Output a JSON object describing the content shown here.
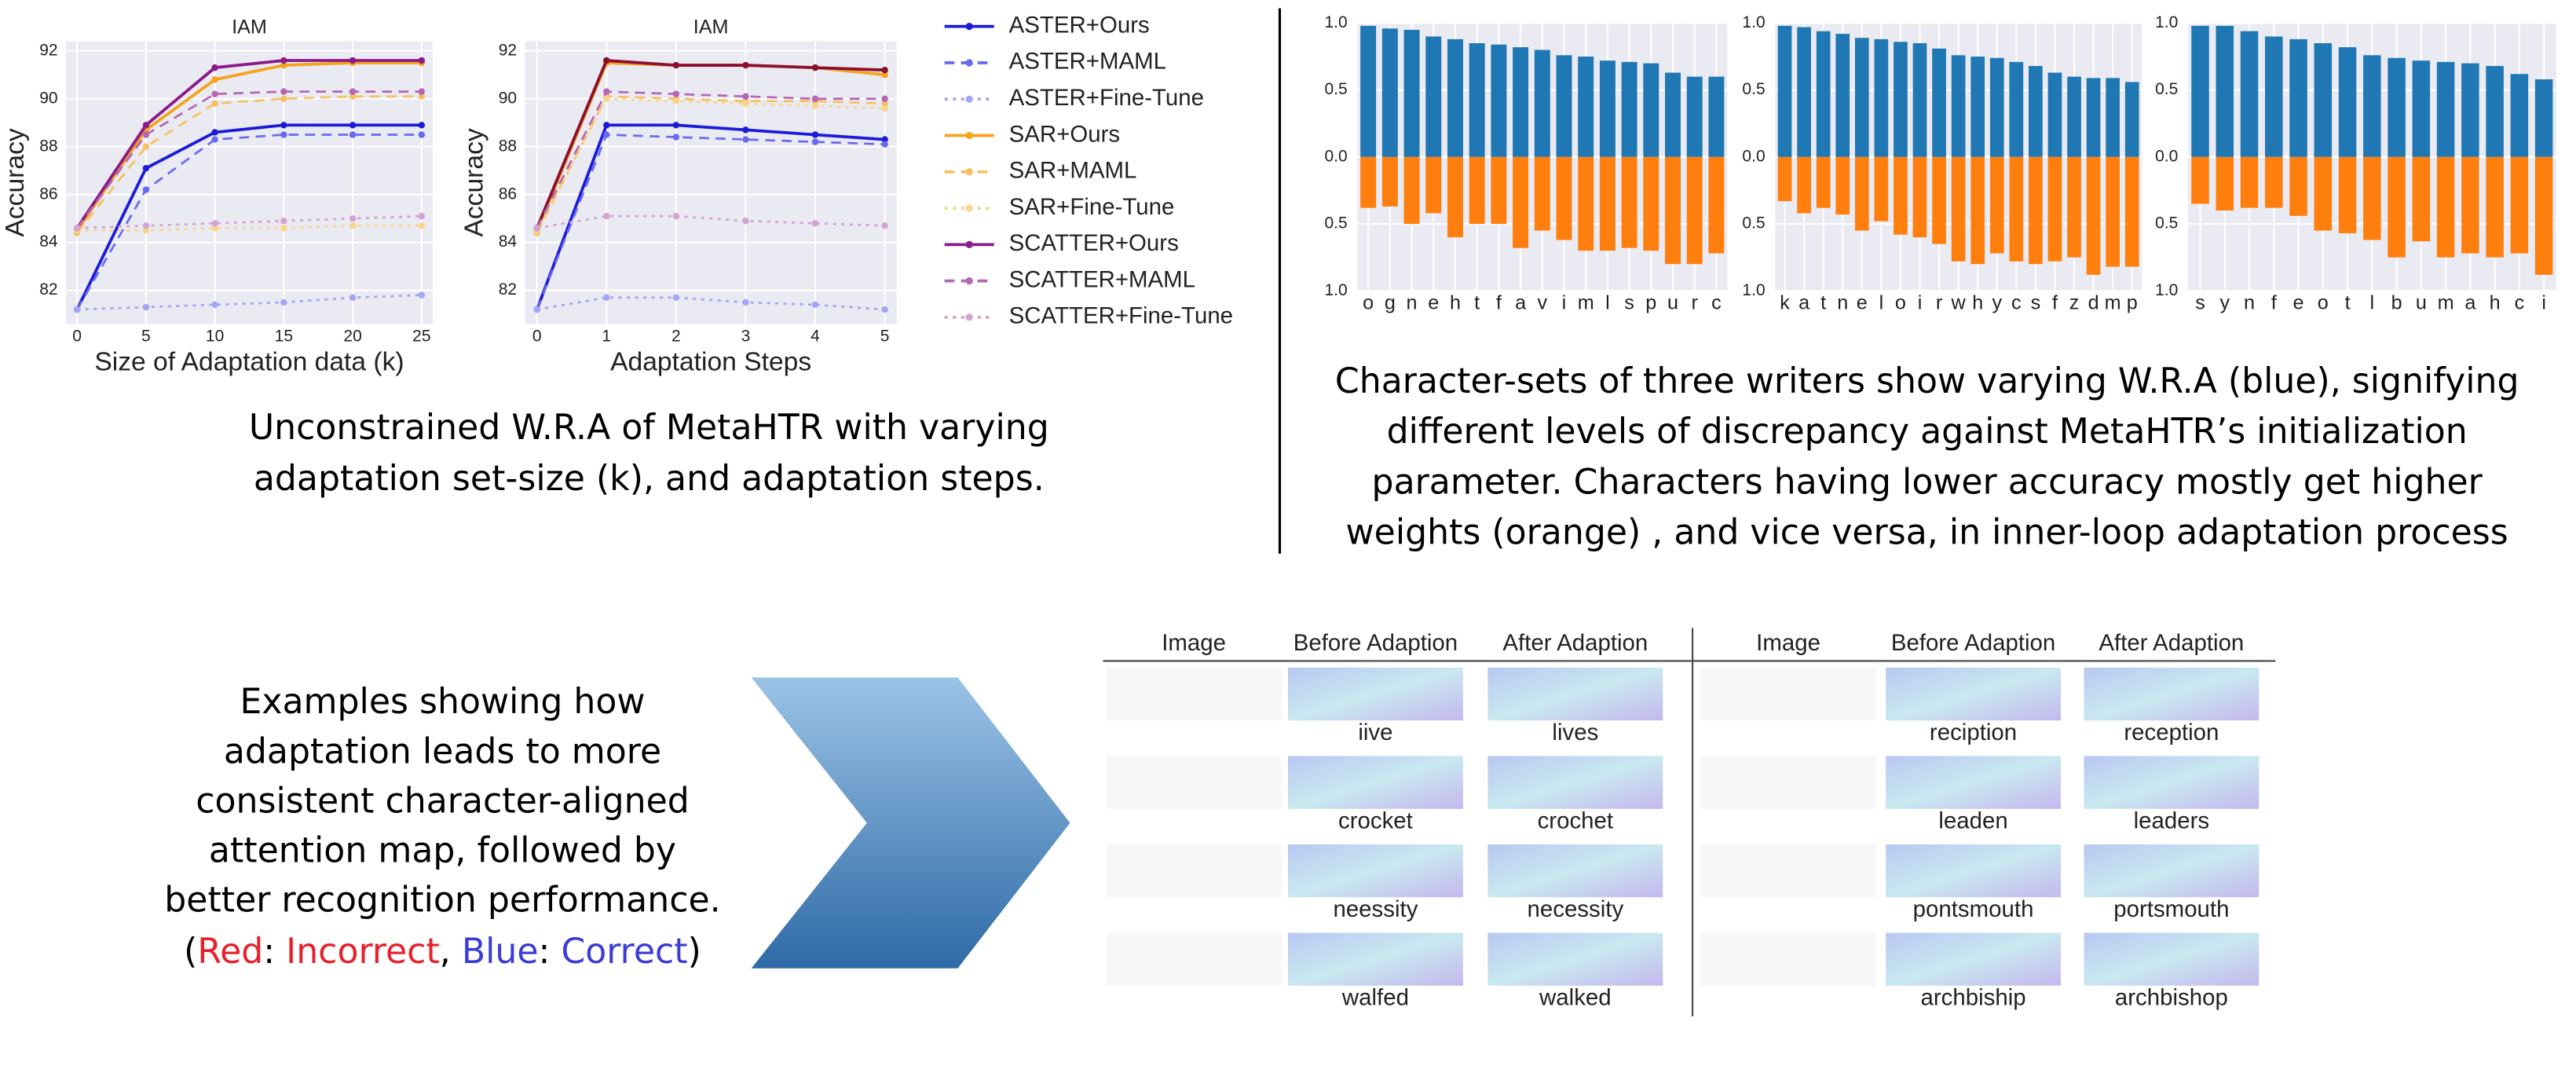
{
  "chart_data": [
    {
      "type": "line",
      "title": "IAM",
      "xlabel": "Size of Adaptation data (k)",
      "ylabel": "Accuracy",
      "x": [
        0,
        5,
        10,
        15,
        20,
        25
      ],
      "xlim": [
        -0.8,
        25.8
      ],
      "xticks": [
        0,
        5,
        10,
        15,
        20,
        25
      ],
      "ylim": [
        80.6,
        92.4
      ],
      "yticks": [
        82,
        84,
        86,
        88,
        90,
        92
      ],
      "grid": true,
      "legend": "outside right",
      "series": [
        {
          "name": "ASTER+Ours",
          "color": "#1c1cd8",
          "linestyle": "solid",
          "values": [
            81.2,
            87.1,
            88.6,
            88.9,
            88.9,
            88.9
          ]
        },
        {
          "name": "ASTER+MAML",
          "color": "#6a6af0",
          "linestyle": "dashed",
          "values": [
            81.2,
            86.2,
            88.3,
            88.5,
            88.5,
            88.5
          ]
        },
        {
          "name": "ASTER+Fine-Tune",
          "color": "#a5a5f5",
          "linestyle": "dotted",
          "values": [
            81.2,
            81.3,
            81.4,
            81.5,
            81.7,
            81.8
          ]
        },
        {
          "name": "SAR+Ours",
          "color": "#f5a31a",
          "linestyle": "solid",
          "values": [
            84.5,
            88.7,
            90.8,
            91.4,
            91.5,
            91.5
          ]
        },
        {
          "name": "SAR+MAML",
          "color": "#f7c060",
          "linestyle": "dashed",
          "values": [
            84.4,
            88.0,
            89.8,
            90.0,
            90.1,
            90.1
          ]
        },
        {
          "name": "SAR+Fine-Tune",
          "color": "#f9d58d",
          "linestyle": "dotted",
          "values": [
            84.5,
            84.5,
            84.6,
            84.6,
            84.7,
            84.7
          ]
        },
        {
          "name": "SCATTER+Ours",
          "color": "#8b1a8b",
          "linestyle": "solid",
          "values": [
            84.6,
            88.9,
            91.3,
            91.6,
            91.6,
            91.6
          ]
        },
        {
          "name": "SCATTER+MAML",
          "color": "#b566b5",
          "linestyle": "dashed",
          "values": [
            84.6,
            88.5,
            90.2,
            90.3,
            90.3,
            90.3
          ]
        },
        {
          "name": "SCATTER+Fine-Tune",
          "color": "#d4a3d4",
          "linestyle": "dotted",
          "values": [
            84.6,
            84.7,
            84.8,
            84.9,
            85.0,
            85.1
          ]
        }
      ]
    },
    {
      "type": "line",
      "title": "IAM",
      "xlabel": "Adaptation Steps",
      "ylabel": "Accuracy",
      "x": [
        0,
        1,
        2,
        3,
        4,
        5
      ],
      "xlim": [
        -0.17,
        5.17
      ],
      "xticks": [
        0,
        1,
        2,
        3,
        4,
        5
      ],
      "ylim": [
        80.6,
        92.4
      ],
      "yticks": [
        82,
        84,
        86,
        88,
        90,
        92
      ],
      "grid": true,
      "series": [
        {
          "name": "ASTER+Ours",
          "color": "#1c1cd8",
          "linestyle": "solid",
          "values": [
            81.2,
            88.9,
            88.9,
            88.7,
            88.5,
            88.3
          ]
        },
        {
          "name": "ASTER+MAML",
          "color": "#6a6af0",
          "linestyle": "dashed",
          "values": [
            81.2,
            88.5,
            88.4,
            88.3,
            88.2,
            88.1
          ]
        },
        {
          "name": "ASTER+Fine-Tune",
          "color": "#a5a5f5",
          "linestyle": "dotted",
          "values": [
            81.2,
            81.7,
            81.7,
            81.5,
            81.4,
            81.2
          ]
        },
        {
          "name": "SAR+Ours",
          "color": "#f5a31a",
          "linestyle": "solid",
          "values": [
            84.5,
            91.5,
            91.4,
            91.4,
            91.3,
            91.0
          ]
        },
        {
          "name": "SAR+MAML",
          "color": "#f7c060",
          "linestyle": "dashed",
          "values": [
            84.4,
            90.1,
            90.0,
            89.9,
            89.9,
            89.8
          ]
        },
        {
          "name": "SAR+Fine-Tune",
          "color": "#f9d58d",
          "linestyle": "dotted",
          "values": [
            84.5,
            90.0,
            89.9,
            89.8,
            89.7,
            89.6
          ]
        },
        {
          "name": "SCATTER+Ours",
          "color": "#8b1030",
          "linestyle": "solid",
          "values": [
            84.6,
            91.6,
            91.4,
            91.4,
            91.3,
            91.2
          ]
        },
        {
          "name": "SCATTER+MAML",
          "color": "#b566b5",
          "linestyle": "dashed",
          "values": [
            84.6,
            90.3,
            90.2,
            90.1,
            90.0,
            90.0
          ]
        },
        {
          "name": "SCATTER+Fine-Tune",
          "color": "#d4a3d4",
          "linestyle": "dotted",
          "values": [
            84.6,
            85.1,
            85.1,
            84.9,
            84.8,
            84.7
          ]
        }
      ]
    },
    {
      "type": "bar",
      "categories": [
        "o",
        "g",
        "n",
        "e",
        "h",
        "t",
        "f",
        "a",
        "v",
        "i",
        "m",
        "l",
        "s",
        "p",
        "u",
        "r",
        "c"
      ],
      "ylim": [
        -1,
        1
      ],
      "yticks": [
        {
          "value": -1,
          "label": "1.0"
        },
        {
          "value": -0.5,
          "label": "0.5"
        },
        {
          "value": 0,
          "label": "0.0"
        },
        0.5,
        {
          "value": 1,
          "label": "1.0"
        }
      ],
      "grid": true,
      "series": [
        {
          "color": "#1f77b4",
          "values": [
            0.98,
            0.96,
            0.95,
            0.9,
            0.88,
            0.85,
            0.84,
            0.82,
            0.8,
            0.76,
            0.75,
            0.72,
            0.71,
            0.7,
            0.63,
            0.6,
            0.6
          ]
        },
        {
          "color": "#ff7f0e",
          "values": [
            -0.38,
            -0.37,
            -0.5,
            -0.42,
            -0.6,
            -0.5,
            -0.5,
            -0.68,
            -0.55,
            -0.62,
            -0.7,
            -0.7,
            -0.68,
            -0.7,
            -0.8,
            -0.8,
            -0.72
          ]
        }
      ]
    },
    {
      "type": "bar",
      "categories": [
        "k",
        "a",
        "t",
        "n",
        "e",
        "l",
        "o",
        "i",
        "r",
        "w",
        "h",
        "y",
        "c",
        "s",
        "f",
        "z",
        "d",
        "m",
        "p"
      ],
      "ylim": [
        -1,
        1
      ],
      "yticks": [
        {
          "value": -1,
          "label": "1.0"
        },
        {
          "value": -0.5,
          "label": "0.5"
        },
        {
          "value": 0,
          "label": "0.0"
        },
        0.5,
        {
          "value": 1,
          "label": "1.0"
        }
      ],
      "grid": true,
      "series": [
        {
          "color": "#1f77b4",
          "values": [
            0.98,
            0.97,
            0.94,
            0.92,
            0.89,
            0.88,
            0.86,
            0.85,
            0.81,
            0.76,
            0.75,
            0.74,
            0.71,
            0.68,
            0.63,
            0.6,
            0.59,
            0.59,
            0.56
          ]
        },
        {
          "color": "#ff7f0e",
          "values": [
            -0.33,
            -0.42,
            -0.38,
            -0.43,
            -0.55,
            -0.48,
            -0.58,
            -0.6,
            -0.65,
            -0.78,
            -0.8,
            -0.72,
            -0.78,
            -0.8,
            -0.78,
            -0.75,
            -0.88,
            -0.82,
            -0.82
          ]
        }
      ]
    },
    {
      "type": "bar",
      "categories": [
        "s",
        "y",
        "n",
        "f",
        "e",
        "o",
        "t",
        "l",
        "b",
        "u",
        "m",
        "a",
        "h",
        "c",
        "i"
      ],
      "ylim": [
        -1,
        1
      ],
      "yticks": [
        {
          "value": -1,
          "label": "1.0"
        },
        {
          "value": -0.5,
          "label": "0.5"
        },
        {
          "value": 0,
          "label": "0.0"
        },
        0.5,
        {
          "value": 1,
          "label": "1.0"
        }
      ],
      "grid": true,
      "series": [
        {
          "color": "#1f77b4",
          "values": [
            0.98,
            0.98,
            0.94,
            0.9,
            0.88,
            0.85,
            0.82,
            0.76,
            0.74,
            0.72,
            0.71,
            0.7,
            0.68,
            0.62,
            0.58
          ]
        },
        {
          "color": "#ff7f0e",
          "values": [
            -0.35,
            -0.4,
            -0.38,
            -0.38,
            -0.44,
            -0.55,
            -0.57,
            -0.62,
            -0.75,
            -0.63,
            -0.75,
            -0.72,
            -0.75,
            -0.72,
            -0.88
          ]
        }
      ]
    }
  ],
  "captions": {
    "left": [
      "Unconstrained W.R.A of MetaHTR with varying",
      "adaptation set-size (k), and adaptation steps."
    ],
    "right": [
      "Character-sets of three writers show varying W.R.A (blue), signifying",
      "different levels of discrepancy against MetaHTR’s initialization",
      "parameter. Characters having lower accuracy mostly get higher",
      "weights (orange) , and vice versa, in inner-loop adaptation process"
    ]
  },
  "examples": {
    "text": [
      "Examples showing how",
      "adaptation leads to more",
      "consistent character-aligned",
      "attention map, followed by",
      "better recognition performance."
    ],
    "note": [
      "(",
      "Red",
      ": ",
      "Incorrect",
      ", ",
      "Blue",
      ": ",
      "Correct",
      ")"
    ],
    "tables": [
      {
        "headers": [
          "Image",
          "Before Adaption",
          "After Adaption"
        ],
        "rows": [
          [
            "iive",
            "lives"
          ],
          [
            "crocket",
            "crochet"
          ],
          [
            "neessity",
            "necessity"
          ],
          [
            "walfed",
            "walked"
          ]
        ]
      },
      {
        "headers": [
          "Image",
          "Before Adaption",
          "After Adaption"
        ],
        "rows": [
          [
            "reciption",
            "reception"
          ],
          [
            "leaden",
            "leaders"
          ],
          [
            "pontsmouth",
            "portsmouth"
          ],
          [
            "archbiship",
            "archbishop"
          ]
        ]
      }
    ]
  }
}
